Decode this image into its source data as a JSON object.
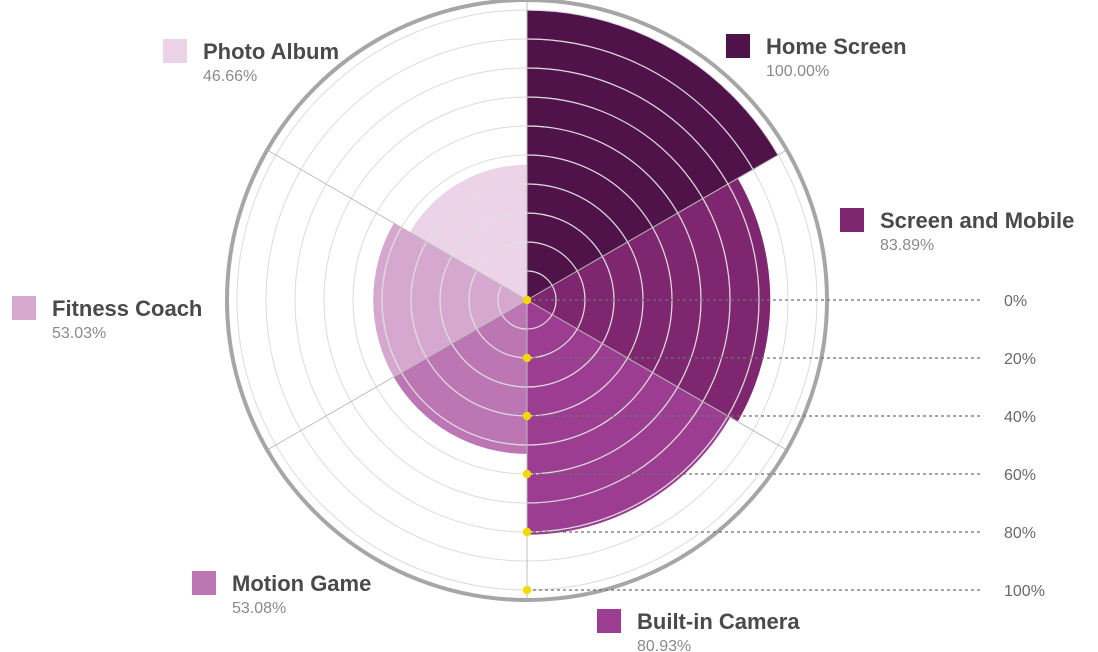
{
  "chart_data": {
    "type": "polar-area",
    "categories": [
      "Home Screen",
      "Screen and Mobile",
      "Built-in Camera",
      "Motion Game",
      "Fitness Coach",
      "Photo Album"
    ],
    "values": [
      100.0,
      83.89,
      80.93,
      53.08,
      53.03,
      46.66
    ],
    "value_labels": [
      "100.00%",
      "83.89%",
      "80.93%",
      "53.08%",
      "53.03%",
      "46.66%"
    ],
    "colors": [
      "#4f1249",
      "#7e2770",
      "#9c3d92",
      "#bb76b3",
      "#d6a8cf",
      "#ecd3e7"
    ],
    "radial_axis": {
      "range": [
        0,
        100
      ],
      "tick_labels": [
        "0%",
        "20%",
        "40%",
        "60%",
        "80%",
        "100%"
      ],
      "tick_values": [
        0,
        20,
        40,
        60,
        80,
        100
      ],
      "ring_step": 10
    },
    "grid": true,
    "legend": "around"
  }
}
